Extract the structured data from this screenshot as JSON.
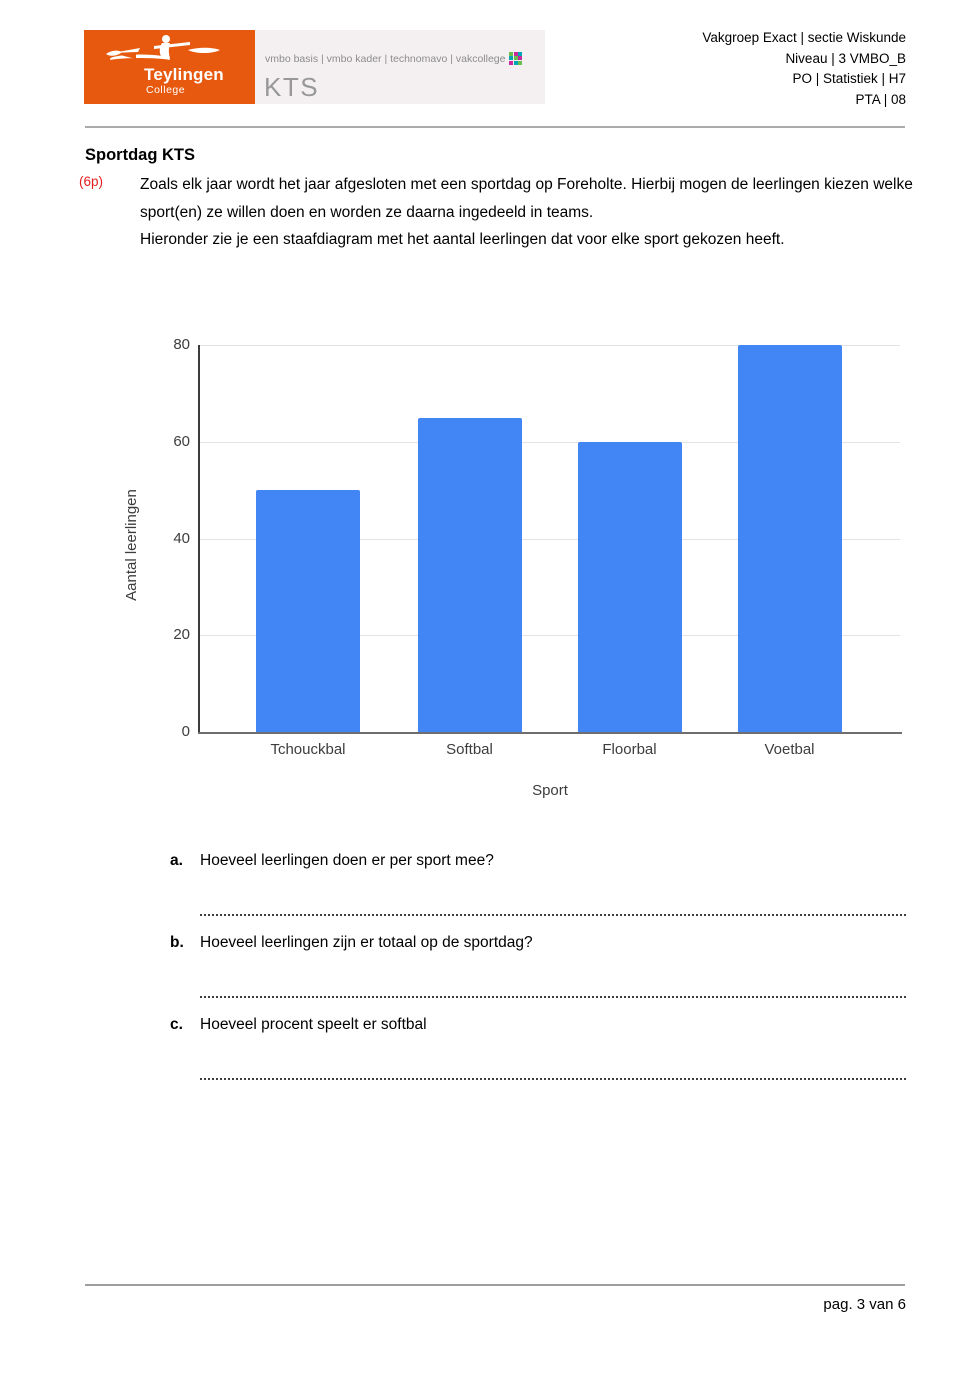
{
  "header": {
    "logo": {
      "name": "Teylingen",
      "sub": "College"
    },
    "band": {
      "tracks": "vmbo basis | vmbo kader | technomavo | vakcollege",
      "school": "KTS"
    },
    "meta_lines": [
      "Vakgroep Exact | sectie Wiskunde",
      "Niveau | 3 VMBO_B",
      "PO | Statistiek | H7",
      "PTA | 08"
    ]
  },
  "assignment": {
    "title": "Sportdag KTS",
    "points": "(6p)",
    "paragraph1": "Zoals elk jaar wordt het jaar afgesloten met een sportdag op Foreholte. Hierbij mogen de leerlingen kiezen welke sport(en) ze willen doen en worden ze daarna ingedeeld in teams.",
    "paragraph2": "Hieronder zie je een staafdiagram met het aantal leerlingen dat voor elke sport gekozen heeft."
  },
  "chart_data": {
    "type": "bar",
    "categories": [
      "Tchouckbal",
      "Softbal",
      "Floorbal",
      "Voetbal"
    ],
    "values": [
      50,
      65,
      60,
      80
    ],
    "title": "",
    "xlabel": "Sport",
    "ylabel": "Aantal leerlingen",
    "ylim": [
      0,
      80
    ],
    "yticks": [
      0,
      20,
      40,
      60,
      80
    ],
    "grid": true,
    "legend": "none",
    "bar_color": "#4285F4"
  },
  "questions": [
    {
      "marker": "a.",
      "text": "Hoeveel leerlingen doen er per sport mee?"
    },
    {
      "marker": "b.",
      "text": "Hoeveel leerlingen zijn er totaal op de sportdag?"
    },
    {
      "marker": "c.",
      "text": "Hoeveel procent speelt er softbal"
    }
  ],
  "footer": {
    "page": "pag. 3 van 6"
  },
  "icons": {
    "kayaker": "kayaker-icon",
    "vakcollege_grid": "vakcollege-grid-icon"
  }
}
